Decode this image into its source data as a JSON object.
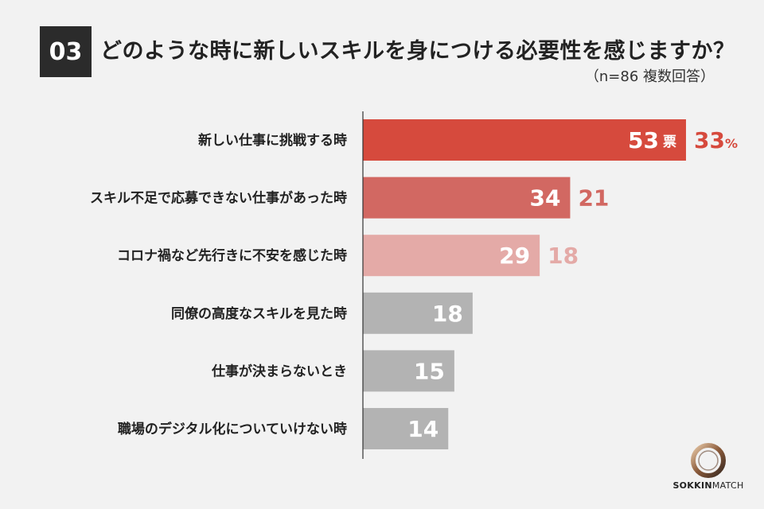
{
  "header": {
    "number": "03",
    "title": "どのような時に新しいスキルを身につける必要性を感じますか？",
    "subtitle": "（n=86 複数回答）"
  },
  "chart_data": {
    "type": "bar",
    "orientation": "horizontal",
    "categories": [
      "新しい仕事に挑戦する時",
      "スキル不足で応募できない仕事があった時",
      "コロナ禍など先行きに不安を感じた時",
      "同僚の高度なスキルを見た時",
      "仕事が決まらないとき",
      "職場のデジタル化についていけない時"
    ],
    "values": [
      53,
      34,
      29,
      18,
      15,
      14
    ],
    "percents": [
      33,
      21,
      18,
      null,
      null,
      null
    ],
    "value_unit": "票",
    "percent_unit": "%",
    "colors": [
      "#d64a3d",
      "#d26862",
      "#e4aaa7",
      "#b3b3b3",
      "#b3b3b3",
      "#b3b3b3"
    ],
    "percent_colors": [
      "#d64a3d",
      "#d26862",
      "#e4aaa7"
    ]
  },
  "logo": {
    "text_bold": "SOKKIN",
    "text_light": "MATCH"
  }
}
